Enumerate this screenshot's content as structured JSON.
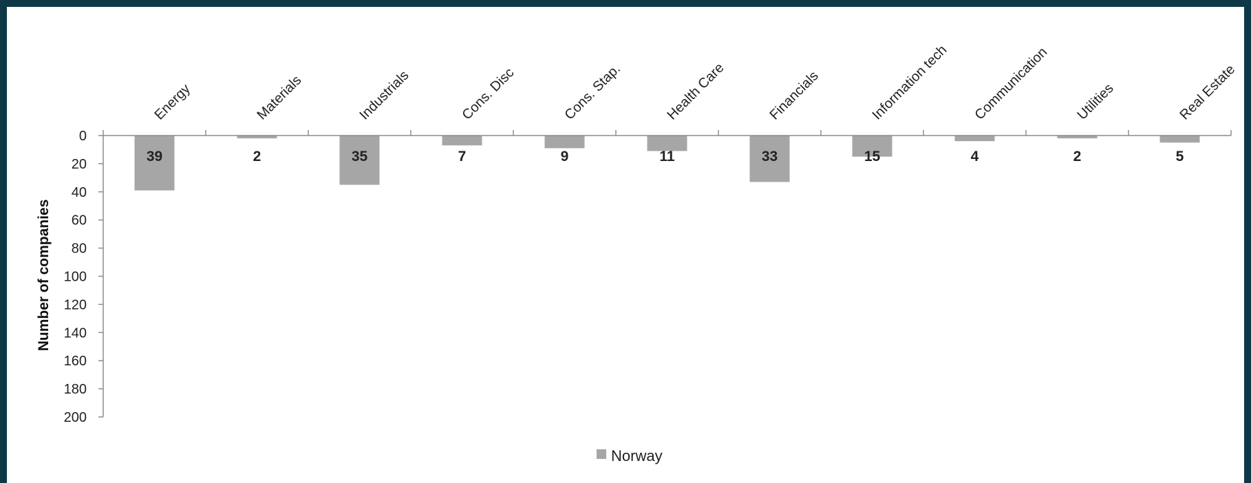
{
  "chart_data": {
    "type": "bar",
    "categories": [
      "Energy",
      "Materials",
      "Industrials",
      "Cons. Disc",
      "Cons. Stap.",
      "Health Care",
      "Financials",
      "Information tech",
      "Communication",
      "Utilities",
      "Real Estate"
    ],
    "series": [
      {
        "name": "Norway",
        "values": [
          39,
          2,
          35,
          7,
          9,
          11,
          33,
          15,
          4,
          2,
          5
        ],
        "color": "#a6a6a6"
      }
    ],
    "data_labels": [
      "39",
      "2",
      "35",
      "7",
      "9",
      "11",
      "33",
      "15",
      "4",
      "2",
      "5"
    ],
    "ylabel": "Number of companies",
    "ylim": [
      0,
      200
    ],
    "yticks": [
      "0",
      "20",
      "40",
      "60",
      "80",
      "100",
      "120",
      "140",
      "160",
      "180",
      "200"
    ],
    "y_axis_reversed": true,
    "category_axis_position": "top",
    "grid": false,
    "legend_position": "bottom-center"
  },
  "colors": {
    "frame": "#0f3846",
    "bar": "#a6a6a6",
    "axis": "#8c8c8c"
  }
}
